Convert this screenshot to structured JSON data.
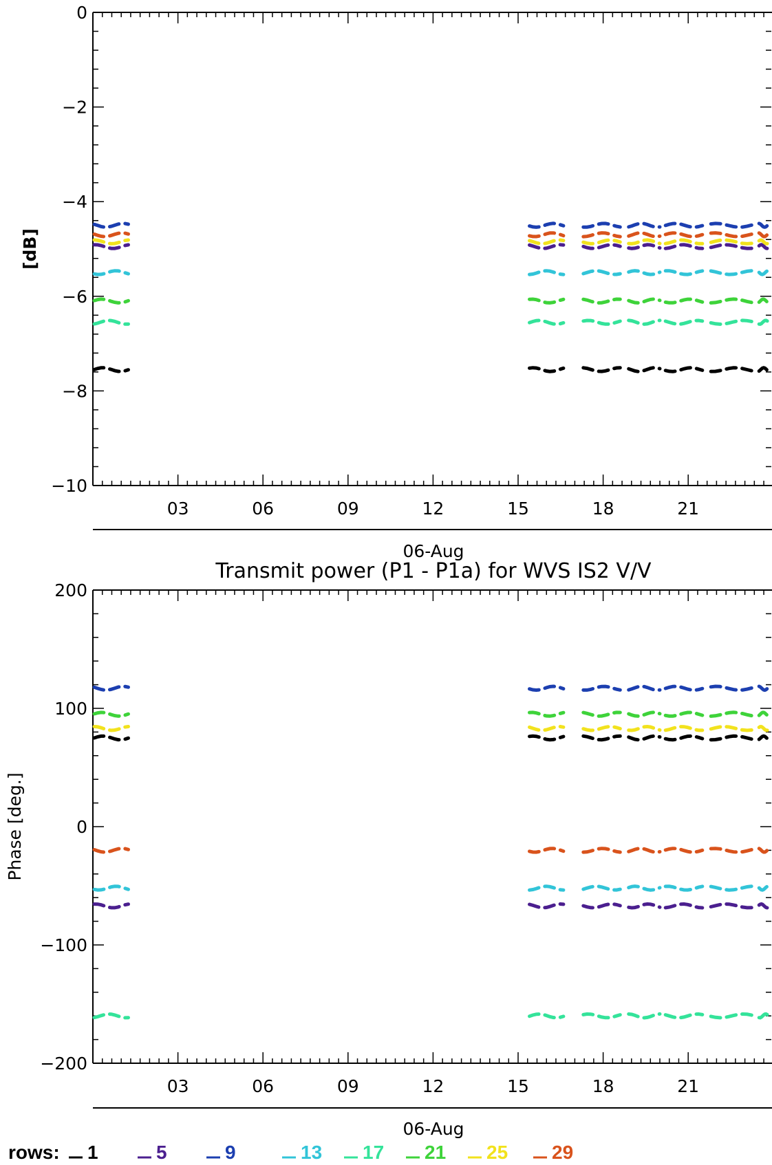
{
  "chart_data": [
    {
      "type": "scatter",
      "title": "",
      "xlabel": "06-Aug",
      "ylabel": "[dB]",
      "ylim": [
        -10,
        0
      ],
      "yticks": [
        0,
        -2,
        -4,
        -6,
        -8,
        -10
      ],
      "x_tick_labels": [
        "03",
        "06",
        "09",
        "12",
        "15",
        "18",
        "21"
      ],
      "x_tick_hours": [
        3,
        6,
        9,
        12,
        15,
        18,
        21
      ],
      "xlim_hours": [
        0,
        24
      ],
      "grid": false,
      "segments": [
        {
          "start": 0.05,
          "end": 1.25
        },
        {
          "start": 15.4,
          "end": 16.6
        },
        {
          "start": 17.3,
          "end": 18.6
        },
        {
          "start": 18.9,
          "end": 20.0
        },
        {
          "start": 20.2,
          "end": 21.5
        },
        {
          "start": 21.8,
          "end": 23.4
        },
        {
          "start": 23.5,
          "end": 24.0
        }
      ],
      "series": [
        {
          "name": "1",
          "color": "#000000",
          "values": [
            -7.55
          ]
        },
        {
          "name": "5",
          "color": "#4b1f8f",
          "values": [
            -4.95
          ]
        },
        {
          "name": "9",
          "color": "#1c3fb0",
          "values": [
            -4.5
          ]
        },
        {
          "name": "13",
          "color": "#32c4d8",
          "values": [
            -5.5
          ]
        },
        {
          "name": "17",
          "color": "#34e39a",
          "values": [
            -6.55
          ]
        },
        {
          "name": "21",
          "color": "#3ed33a",
          "values": [
            -6.1
          ]
        },
        {
          "name": "25",
          "color": "#f2e21d",
          "values": [
            -4.85
          ]
        },
        {
          "name": "29",
          "color": "#d9531c",
          "values": [
            -4.7
          ]
        }
      ]
    },
    {
      "type": "scatter",
      "title": "Transmit power (P1 - P1a) for WVS IS2 V/V",
      "xlabel": "06-Aug",
      "ylabel": "Phase [deg.]",
      "ylim": [
        -200,
        200
      ],
      "yticks": [
        200,
        100,
        0,
        -100,
        -200
      ],
      "x_tick_labels": [
        "03",
        "06",
        "09",
        "12",
        "15",
        "18",
        "21"
      ],
      "x_tick_hours": [
        3,
        6,
        9,
        12,
        15,
        18,
        21
      ],
      "xlim_hours": [
        0,
        24
      ],
      "grid": false,
      "segments": [
        {
          "start": 0.05,
          "end": 1.25
        },
        {
          "start": 15.4,
          "end": 16.6
        },
        {
          "start": 17.3,
          "end": 18.6
        },
        {
          "start": 18.9,
          "end": 20.0
        },
        {
          "start": 20.2,
          "end": 21.5
        },
        {
          "start": 21.8,
          "end": 23.4
        },
        {
          "start": 23.5,
          "end": 24.0
        }
      ],
      "series": [
        {
          "name": "1",
          "color": "#000000",
          "values": [
            75
          ]
        },
        {
          "name": "5",
          "color": "#4b1f8f",
          "values": [
            -67
          ]
        },
        {
          "name": "9",
          "color": "#1c3fb0",
          "values": [
            117
          ]
        },
        {
          "name": "13",
          "color": "#32c4d8",
          "values": [
            -52
          ]
        },
        {
          "name": "17",
          "color": "#34e39a",
          "values": [
            -160
          ]
        },
        {
          "name": "21",
          "color": "#3ed33a",
          "values": [
            95
          ]
        },
        {
          "name": "25",
          "color": "#f2e21d",
          "values": [
            83
          ]
        },
        {
          "name": "29",
          "color": "#d9531c",
          "values": [
            -20
          ]
        }
      ]
    }
  ],
  "legend": {
    "label": "rows:",
    "items": [
      {
        "name": "1",
        "color": "#000000"
      },
      {
        "name": "5",
        "color": "#4b1f8f"
      },
      {
        "name": "9",
        "color": "#1c3fb0"
      },
      {
        "name": "13",
        "color": "#32c4d8"
      },
      {
        "name": "17",
        "color": "#34e39a"
      },
      {
        "name": "21",
        "color": "#3ed33a"
      },
      {
        "name": "25",
        "color": "#f2e21d"
      },
      {
        "name": "29",
        "color": "#d9531c"
      }
    ]
  }
}
